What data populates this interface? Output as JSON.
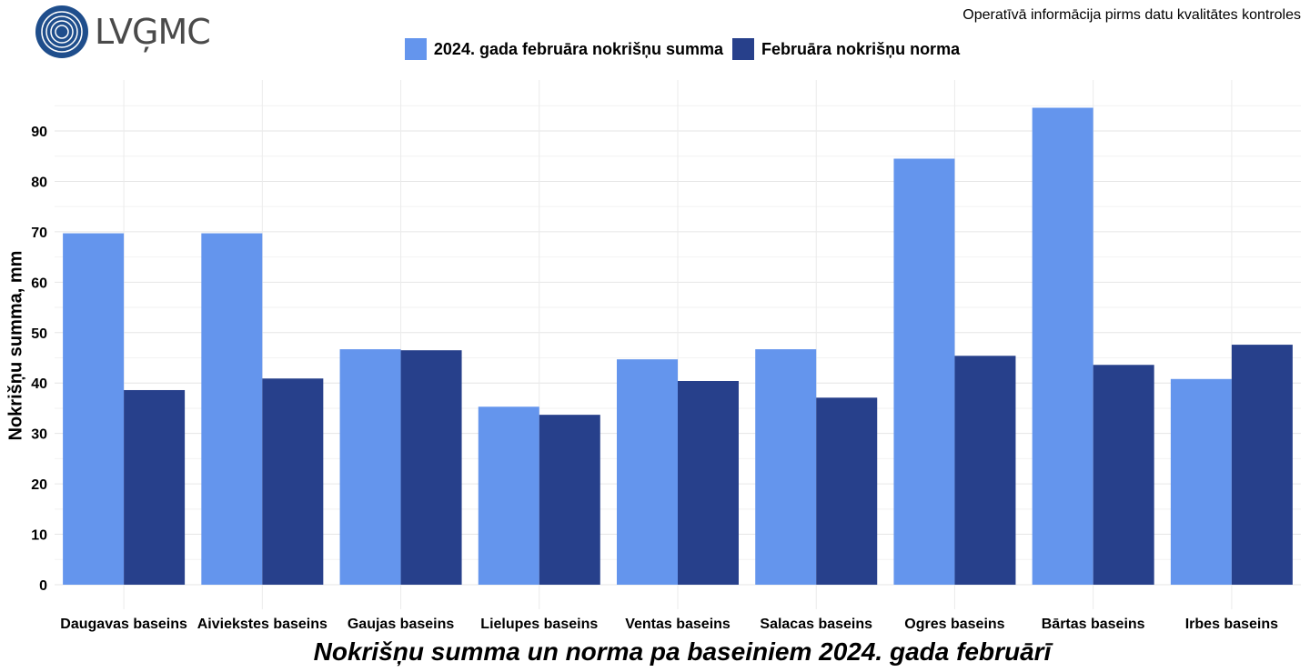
{
  "logo": {
    "text": "LVĢMC"
  },
  "note": "Operatīvā informācija pirms datu kvalitātes kontroles",
  "chart_data": {
    "type": "bar",
    "title": "Nokrišņu summa un norma pa baseiniem 2024. gada februārī",
    "xlabel": "",
    "ylabel": "Nokrišņu summa, mm",
    "ylim": [
      0,
      98
    ],
    "yticks": [
      0,
      10,
      20,
      30,
      40,
      50,
      60,
      70,
      80,
      90
    ],
    "grid": true,
    "legend_position": "top",
    "categories": [
      "Daugavas baseins",
      "Aiviekstes baseins",
      "Gaujas baseins",
      "Lielupes baseins",
      "Ventas baseins",
      "Salacas baseins",
      "Ogres baseins",
      "Bārtas baseins",
      "Irbes baseins"
    ],
    "series": [
      {
        "name": "2024. gada februāra nokrišņu summa",
        "color": "#6495ED",
        "values": [
          69.7,
          69.7,
          46.7,
          35.3,
          44.7,
          46.7,
          84.5,
          94.6,
          40.8
        ]
      },
      {
        "name": "Februāra nokrišņu norma",
        "color": "#27408B",
        "values": [
          38.6,
          40.9,
          46.5,
          33.7,
          40.4,
          37.1,
          45.4,
          43.6,
          47.6
        ]
      }
    ]
  }
}
